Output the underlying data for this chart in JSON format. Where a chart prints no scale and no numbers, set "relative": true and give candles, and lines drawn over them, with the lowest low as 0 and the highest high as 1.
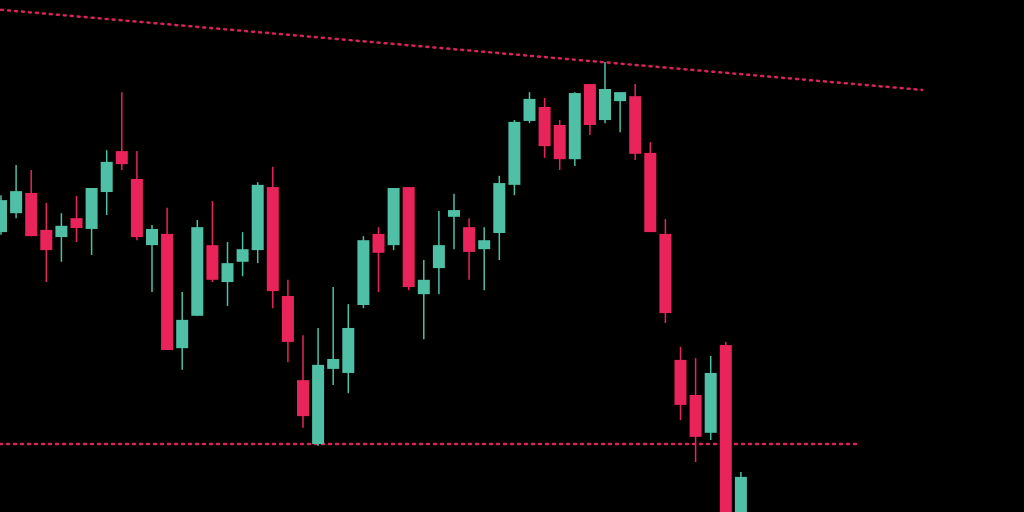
{
  "chart_data": {
    "type": "candlestick",
    "relative": true,
    "categories": [
      null,
      null,
      null,
      null,
      null,
      null,
      null,
      null,
      null,
      null,
      null,
      null,
      null,
      null,
      null,
      null,
      null,
      null,
      null,
      null,
      null,
      null,
      null,
      null,
      null,
      null,
      null,
      null,
      null,
      null,
      null,
      null,
      null,
      null,
      null,
      null,
      null,
      null,
      null,
      null,
      null,
      null,
      null,
      null,
      null,
      null,
      null,
      null,
      null,
      null,
      null,
      null,
      null,
      null,
      null,
      null,
      null,
      null,
      null,
      null,
      null,
      null
    ],
    "colors": [
      "#4fbfa6",
      "#4fbfa6",
      "#e8245a",
      "#e8245a",
      "#4fbfa6",
      "#e8245a",
      "#4fbfa6",
      "#4fbfa6",
      "#e8245a",
      "#e8245a",
      "#4fbfa6",
      "#e8245a",
      "#4fbfa6",
      "#4fbfa6",
      "#e8245a",
      "#4fbfa6",
      "#4fbfa6",
      "#4fbfa6",
      "#e8245a",
      "#e8245a",
      "#e8245a",
      "#4fbfa6",
      "#4fbfa6",
      "#4fbfa6",
      "#4fbfa6",
      "#e8245a",
      "#4fbfa6",
      "#e8245a",
      "#4fbfa6",
      "#4fbfa6",
      "#4fbfa6",
      "#e8245a",
      "#4fbfa6",
      "#4fbfa6",
      "#4fbfa6",
      "#4fbfa6",
      "#e8245a",
      "#e8245a",
      "#4fbfa6",
      "#e8245a",
      "#4fbfa6",
      "#4fbfa6",
      "#e8245a",
      "#e8245a",
      "#e8245a",
      "#e8245a",
      "#e8245a",
      "#4fbfa6",
      "#e8245a",
      "#4fbfa6",
      null,
      null,
      null,
      null,
      null,
      null,
      null,
      null,
      null,
      null,
      null,
      null
    ],
    "ohlc": [
      [
        0.622,
        0.704,
        0.616,
        0.693
      ],
      [
        0.664,
        0.771,
        0.653,
        0.713
      ],
      [
        0.709,
        0.76,
        0.613,
        0.613
      ],
      [
        0.627,
        0.687,
        0.511,
        0.582
      ],
      [
        0.611,
        0.664,
        0.556,
        0.636
      ],
      [
        0.653,
        0.702,
        0.6,
        0.631
      ],
      [
        0.629,
        0.72,
        0.571,
        0.72
      ],
      [
        0.711,
        0.804,
        0.66,
        0.778
      ],
      [
        0.802,
        0.933,
        0.76,
        0.773
      ],
      [
        0.74,
        0.802,
        0.604,
        0.611
      ],
      [
        0.593,
        0.638,
        0.489,
        0.629
      ],
      [
        0.618,
        0.676,
        0.36,
        0.36
      ],
      [
        0.364,
        0.489,
        0.316,
        0.427
      ],
      [
        0.436,
        0.649,
        0.436,
        0.633
      ],
      [
        0.593,
        0.691,
        0.511,
        0.516
      ],
      [
        0.511,
        0.6,
        0.458,
        0.553
      ],
      [
        0.556,
        0.622,
        0.524,
        0.584
      ],
      [
        0.582,
        0.733,
        0.553,
        0.727
      ],
      [
        0.722,
        0.767,
        0.453,
        0.491
      ],
      [
        0.48,
        0.516,
        0.333,
        0.378
      ],
      [
        0.293,
        0.393,
        0.187,
        0.213
      ],
      [
        0.151,
        0.409,
        0.147,
        0.327
      ],
      [
        0.318,
        0.5,
        0.282,
        0.34
      ],
      [
        0.309,
        0.462,
        0.264,
        0.409
      ],
      [
        0.46,
        0.613,
        0.453,
        0.604
      ],
      [
        0.618,
        0.633,
        0.489,
        0.576
      ],
      [
        0.593,
        0.72,
        0.582,
        0.72
      ],
      [
        0.722,
        0.722,
        0.493,
        0.5
      ],
      [
        0.484,
        0.56,
        0.384,
        0.516
      ],
      [
        0.542,
        0.669,
        0.484,
        0.593
      ],
      [
        0.656,
        0.707,
        0.584,
        0.671
      ],
      [
        0.633,
        0.653,
        0.516,
        0.578
      ],
      [
        0.584,
        0.633,
        0.493,
        0.604
      ],
      [
        0.62,
        0.747,
        0.56,
        0.731
      ],
      [
        0.727,
        0.871,
        0.704,
        0.867
      ],
      [
        0.869,
        0.933,
        0.864,
        0.918
      ],
      [
        0.9,
        0.92,
        0.787,
        0.813
      ],
      [
        0.86,
        0.871,
        0.76,
        0.784
      ],
      [
        0.784,
        0.933,
        0.769,
        0.931
      ],
      [
        0.951,
        0.951,
        0.838,
        0.86
      ],
      [
        0.871,
        1,
        0.864,
        0.94
      ],
      [
        0.913,
        0.933,
        0.844,
        0.933
      ],
      [
        0.924,
        0.951,
        0.782,
        0.796
      ],
      [
        0.798,
        0.822,
        0.622,
        0.622
      ],
      [
        0.618,
        0.651,
        0.42,
        0.442
      ],
      [
        0.338,
        0.367,
        0.204,
        0.238
      ],
      [
        0.26,
        0.342,
        0.111,
        0.167
      ],
      [
        0.176,
        0.347,
        0.16,
        0.309
      ],
      [
        0.371,
        0.378,
        0,
        0
      ],
      [
        0,
        0.089,
        0,
        0.078
      ],
      null,
      null,
      null,
      null,
      null,
      null,
      null,
      null,
      null,
      null,
      null,
      null
    ],
    "series": [
      {
        "type": "line",
        "color": "#d6245a",
        "line_style": "dotted",
        "marker": "none",
        "values": [
          1.116,
          null,
          null,
          null,
          null,
          null,
          null,
          null,
          null,
          null,
          null,
          null,
          null,
          null,
          null,
          null,
          null,
          null,
          null,
          null,
          null,
          null,
          null,
          null,
          null,
          null,
          null,
          null,
          null,
          null,
          null,
          null,
          null,
          null,
          null,
          null,
          null,
          null,
          null,
          null,
          null,
          null,
          null,
          null,
          null,
          null,
          null,
          null,
          null,
          null,
          null,
          null,
          null,
          null,
          null,
          null,
          null,
          null,
          null,
          null,
          null,
          0.938
        ]
      }
    ],
    "ref_lines": [
      {
        "axis": "y",
        "value": 0.151,
        "color": "#d6245a",
        "line_style": "dotted"
      }
    ],
    "grid": false
  }
}
